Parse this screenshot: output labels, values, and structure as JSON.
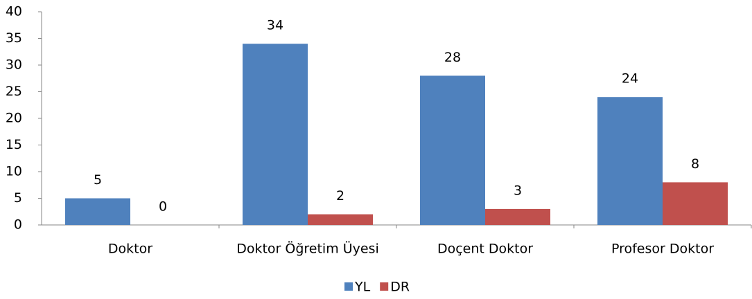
{
  "chart_data": {
    "type": "bar",
    "categories": [
      "Doktor",
      "Doktor Öğretim Üyesi",
      "Doçent Doktor",
      "Profesor Doktor"
    ],
    "series": [
      {
        "name": "YL",
        "color": "#4f81bd",
        "values": [
          5,
          34,
          28,
          24
        ]
      },
      {
        "name": "DR",
        "color": "#c0504d",
        "values": [
          0,
          2,
          3,
          8
        ]
      }
    ],
    "ylim": [
      0,
      40
    ],
    "yticks": [
      0,
      5,
      10,
      15,
      20,
      25,
      30,
      35,
      40
    ],
    "grid": false,
    "legend": "bottom"
  }
}
